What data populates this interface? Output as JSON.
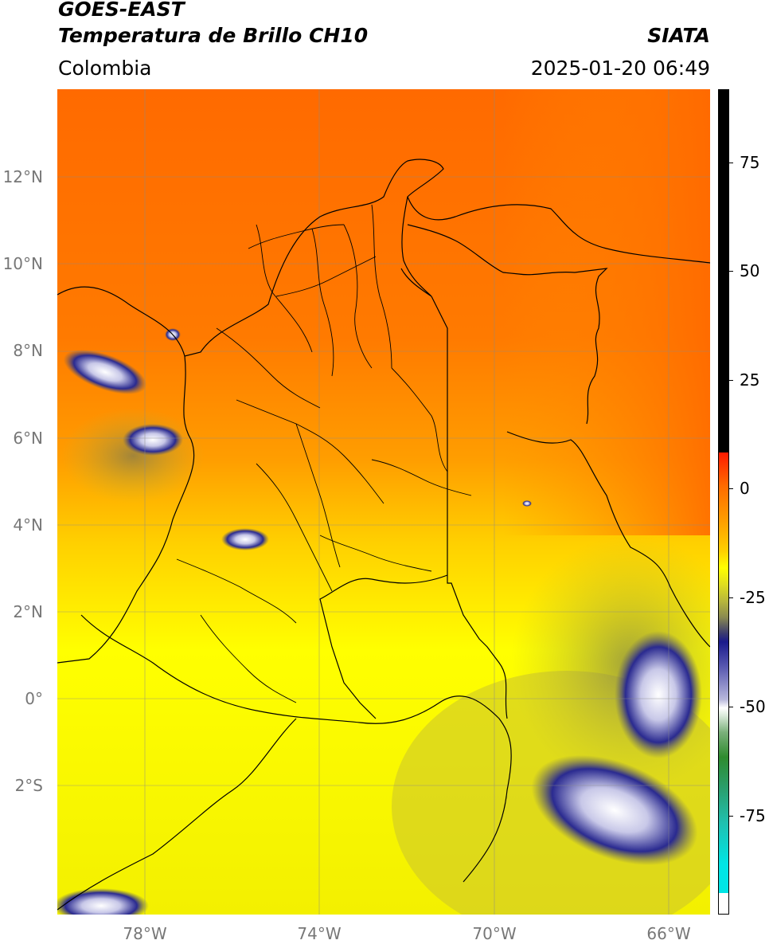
{
  "header": {
    "satellite": "GOES-EAST",
    "product": "Temperatura de Brillo CH10",
    "agency": "SIATA",
    "region": "Colombia",
    "datetime": "2025-01-20 06:49"
  },
  "axes": {
    "lat_ticks": [
      "12°N",
      "10°N",
      "8°N",
      "6°N",
      "4°N",
      "2°N",
      "0°",
      "2°S"
    ],
    "lon_ticks": [
      "78°W",
      "74°W",
      "70°W",
      "66°W"
    ]
  },
  "colorbar": {
    "ticks": [
      "75",
      "50",
      "25",
      "0",
      "-25",
      "-50",
      "-75"
    ],
    "colors": {
      "black": "#000000",
      "red": "#ff1a00",
      "orange": "#ff6a00",
      "yellow": "#ffff00",
      "olive": "#b9b83a",
      "navy": "#1a1a8c",
      "white": "#ffffff",
      "green": "#2e8b2e",
      "cyan": "#00e5e5"
    }
  }
}
